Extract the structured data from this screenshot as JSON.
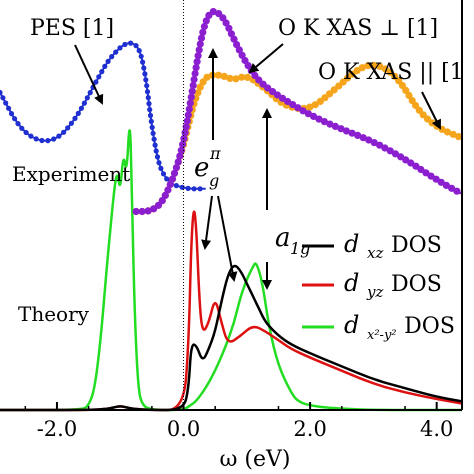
{
  "chart_data": {
    "type": "line",
    "xlabel": "ω (eV)",
    "xlim": [
      -2.9,
      4.4
    ],
    "x_ticks": [
      {
        "value": -2.0,
        "label": "-2.0"
      },
      {
        "value": 0.0,
        "label": "0.0"
      },
      {
        "value": 2.0,
        "label": "2.0"
      },
      {
        "value": 4.0,
        "label": "4.0"
      }
    ],
    "y_ticks_visible": false,
    "zero_line": {
      "x": 0.0,
      "style": "dotted"
    },
    "panels": {
      "experiment": {
        "label": "Experiment",
        "ylim": [
          0,
          1
        ]
      },
      "theory": {
        "label": "Theory",
        "ylim": [
          0,
          1
        ]
      }
    },
    "series": [
      {
        "name": "PES [1]",
        "panel": "experiment",
        "color": "#1f2fd0",
        "marker": "circle",
        "x": [
          -2.9,
          -2.6,
          -2.3,
          -2.0,
          -1.7,
          -1.4,
          -1.2,
          -1.0,
          -0.85,
          -0.7,
          -0.6,
          -0.5,
          -0.4,
          -0.3,
          -0.2,
          -0.05,
          0.1,
          0.25,
          0.35
        ],
        "y": [
          0.7,
          0.5,
          0.42,
          0.43,
          0.55,
          0.75,
          0.88,
          0.96,
          0.99,
          0.96,
          0.8,
          0.5,
          0.3,
          0.22,
          0.18,
          0.16,
          0.15,
          0.15,
          0.15
        ]
      },
      {
        "name": "O K XAS ⊥ [1]",
        "panel": "experiment",
        "color": "#8b1fd0",
        "marker": "circle",
        "x": [
          -0.75,
          -0.55,
          -0.4,
          -0.3,
          -0.2,
          -0.1,
          0.0,
          0.1,
          0.2,
          0.3,
          0.4,
          0.5,
          0.65,
          0.8,
          1.0,
          1.2,
          1.5,
          2.0,
          2.5,
          3.0,
          3.5,
          4.0,
          4.4
        ],
        "y": [
          0.02,
          0.02,
          0.05,
          0.1,
          0.18,
          0.28,
          0.42,
          0.62,
          0.85,
          1.05,
          1.15,
          1.17,
          1.12,
          1.0,
          0.86,
          0.76,
          0.68,
          0.57,
          0.49,
          0.42,
          0.32,
          0.2,
          0.12
        ]
      },
      {
        "name": "O K XAS ∥ [1]",
        "panel": "experiment",
        "color": "#f5a51c",
        "marker": "circle",
        "x": [
          -0.75,
          -0.55,
          -0.4,
          -0.3,
          -0.2,
          -0.1,
          0.0,
          0.1,
          0.2,
          0.3,
          0.4,
          0.6,
          0.8,
          1.0,
          1.3,
          1.6,
          2.0,
          2.4,
          2.8,
          3.1,
          3.4,
          3.7,
          4.0,
          4.4
        ],
        "y": [
          0.02,
          0.02,
          0.05,
          0.1,
          0.18,
          0.28,
          0.4,
          0.55,
          0.68,
          0.76,
          0.8,
          0.8,
          0.77,
          0.8,
          0.72,
          0.62,
          0.6,
          0.72,
          0.85,
          0.86,
          0.78,
          0.6,
          0.5,
          0.44
        ]
      },
      {
        "name": "d_xz DOS",
        "panel": "theory",
        "color": "#000000",
        "marker": "none",
        "x": [
          -2.9,
          -1.5,
          -1.2,
          -1.1,
          -1.0,
          -0.9,
          -0.8,
          -0.5,
          0.0,
          0.08,
          0.12,
          0.2,
          0.3,
          0.4,
          0.5,
          0.6,
          0.7,
          0.8,
          0.9,
          1.0,
          1.1,
          1.2,
          1.3,
          1.5,
          1.7,
          2.0,
          2.5,
          3.0,
          3.5,
          4.0,
          4.4
        ],
        "y": [
          0,
          0,
          0.005,
          0.012,
          0.018,
          0.012,
          0.005,
          0,
          0,
          0.1,
          0.3,
          0.3,
          0.22,
          0.28,
          0.36,
          0.5,
          0.62,
          0.67,
          0.64,
          0.58,
          0.52,
          0.46,
          0.4,
          0.34,
          0.3,
          0.26,
          0.2,
          0.14,
          0.1,
          0.06,
          0.04
        ]
      },
      {
        "name": "d_yz DOS",
        "panel": "theory",
        "color": "#dd1111",
        "marker": "none",
        "x": [
          -2.9,
          -1.5,
          -1.2,
          -1.1,
          -1.0,
          -0.9,
          -0.8,
          -0.5,
          0.0,
          0.08,
          0.12,
          0.16,
          0.2,
          0.25,
          0.3,
          0.4,
          0.5,
          0.6,
          0.7,
          0.9,
          1.1,
          1.3,
          1.5,
          1.7,
          2.0,
          2.5,
          3.0,
          3.5,
          4.0,
          4.4
        ],
        "y": [
          0,
          0,
          0.005,
          0.012,
          0.018,
          0.012,
          0.005,
          0,
          0,
          0.3,
          0.75,
          0.94,
          0.85,
          0.5,
          0.35,
          0.4,
          0.52,
          0.4,
          0.3,
          0.34,
          0.39,
          0.36,
          0.32,
          0.28,
          0.24,
          0.18,
          0.12,
          0.08,
          0.05,
          0.03
        ]
      },
      {
        "name": "d_x²-y² DOS",
        "panel": "theory",
        "color": "#22dd22",
        "marker": "none",
        "x": [
          -2.9,
          -1.6,
          -1.5,
          -1.4,
          -1.3,
          -1.2,
          -1.1,
          -1.05,
          -1.0,
          -0.95,
          -0.9,
          -0.85,
          -0.82,
          -0.78,
          -0.72,
          -0.65,
          -0.5,
          0.0,
          0.1,
          0.2,
          0.35,
          0.5,
          0.65,
          0.8,
          0.9,
          1.0,
          1.1,
          1.15,
          1.25,
          1.35,
          1.5,
          1.7,
          1.8,
          2.0,
          2.3,
          2.6,
          3.0,
          4.4
        ],
        "y": [
          0,
          0,
          0.02,
          0.1,
          0.35,
          0.7,
          1.0,
          1.1,
          1.0,
          1.18,
          1.08,
          1.35,
          1.08,
          0.5,
          0.1,
          0.02,
          0,
          0,
          0.02,
          0.04,
          0.1,
          0.18,
          0.28,
          0.4,
          0.52,
          0.6,
          0.66,
          0.68,
          0.58,
          0.38,
          0.2,
          0.08,
          0.04,
          0.02,
          0.01,
          0.005,
          0,
          0
        ]
      }
    ],
    "legend": {
      "placement": "center-right",
      "entries": [
        {
          "text": "d",
          "sub": "xz",
          "suffix": " DOS",
          "color": "#000000"
        },
        {
          "text": "d",
          "sub": "yz",
          "suffix": " DOS",
          "color": "#dd1111"
        },
        {
          "text": "d",
          "sub": "x²-y²",
          "suffix": " DOS",
          "color": "#22dd22"
        }
      ]
    },
    "annotations": [
      {
        "text": "PES [1]"
      },
      {
        "text": "O K XAS ⊥ [1]"
      },
      {
        "text": "O K XAS || [1"
      },
      {
        "text": "e",
        "sub": "g",
        "sup": "π"
      },
      {
        "text": "a",
        "sub": "1g"
      }
    ]
  }
}
